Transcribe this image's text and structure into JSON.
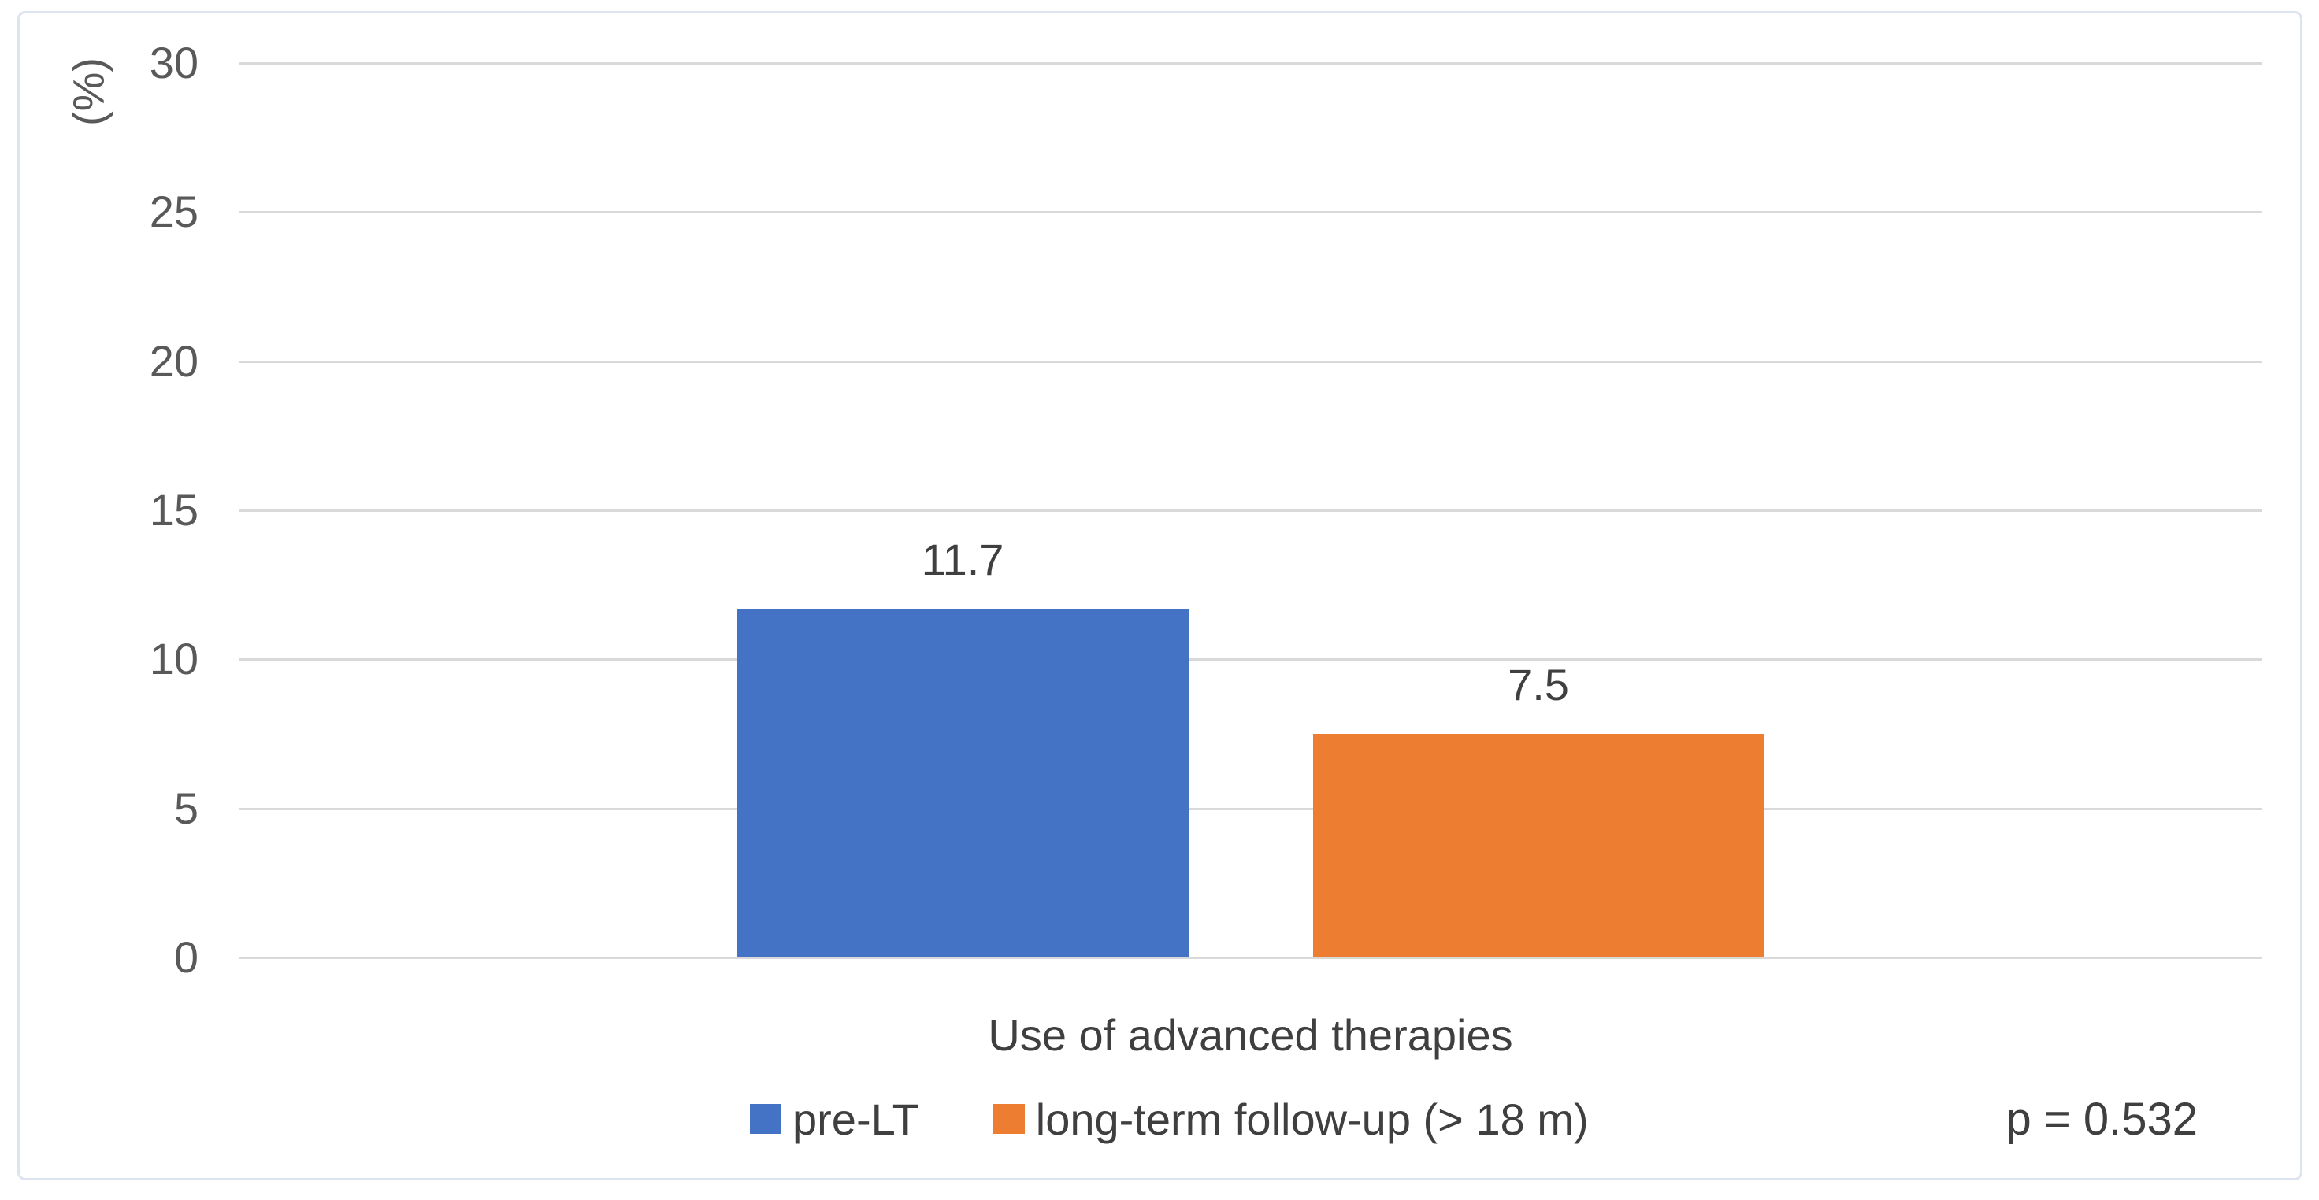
{
  "chart_data": {
    "type": "bar",
    "title": "",
    "xlabel": "Use of advanced therapies",
    "ylabel": "(%)",
    "ylim": [
      0,
      30
    ],
    "yticks": [
      0,
      5,
      10,
      15,
      20,
      25,
      30
    ],
    "grid": true,
    "legend_position": "bottom",
    "categories": [
      "Use of advanced therapies"
    ],
    "series": [
      {
        "name": "pre-LT",
        "color": "#4472C4",
        "values": [
          11.7
        ],
        "data_labels": [
          "11.7"
        ]
      },
      {
        "name": "long-term follow-up (> 18 m)",
        "color": "#ED7D31",
        "values": [
          7.5
        ],
        "data_labels": [
          "7.5"
        ]
      }
    ],
    "annotation": "p = 0.532"
  },
  "colors": {
    "gridline": "#d9d9d9",
    "frame_border": "#dce3f1",
    "tick_text": "#595959",
    "label_text": "#3f3f3f",
    "background": "#ffffff"
  }
}
